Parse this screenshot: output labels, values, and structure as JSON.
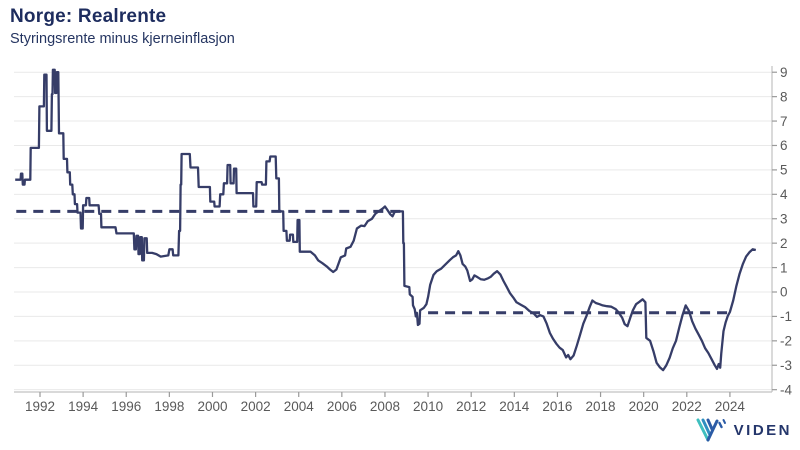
{
  "header": {
    "title": "Norge: Realrente",
    "subtitle": "Styringsrente minus kjerneinflasjon"
  },
  "branding": {
    "logo_text": "VIDEN"
  },
  "colors": {
    "line": "#363d68",
    "dashed_line": "#363d68",
    "title": "#1d2c5e",
    "subtitle": "#253561",
    "tick_label": "#595959",
    "gridline": "#e9e9e9",
    "axis_line": "#c2c2c2",
    "tick_mark": "#9a9a9a",
    "logo_teal": "#3fbfbf",
    "logo_mid_blue": "#2f8fc0",
    "logo_navy": "#2b5ba6"
  },
  "chart_data": {
    "type": "line",
    "title": "Norge: Realrente",
    "subtitle": "Styringsrente minus kjerneinflasjon",
    "grid": "horizontal-light",
    "y_axis_side": "right",
    "legend": "none",
    "xlim": [
      1990.8,
      2025.85
    ],
    "ylim": [
      -4.3,
      9.3
    ],
    "x_ticks": [
      1992,
      1994,
      1996,
      1998,
      2000,
      2002,
      2004,
      2006,
      2008,
      2010,
      2012,
      2014,
      2016,
      2018,
      2020,
      2022,
      2024
    ],
    "y_ticks": [
      9,
      8,
      7,
      6,
      5,
      4,
      3,
      2,
      1,
      0,
      -1,
      -2,
      -3,
      -4
    ],
    "reference_lines": [
      {
        "value": 3.3,
        "from": 1990.9,
        "to": 2008.83,
        "style": "dashed"
      },
      {
        "value": -0.85,
        "from": 2010.0,
        "to": 2023.9,
        "style": "dashed"
      }
    ],
    "series": [
      {
        "name": "Realrente",
        "points": [
          [
            1990.85,
            4.6
          ],
          [
            1991.1,
            4.6
          ],
          [
            1991.12,
            4.85
          ],
          [
            1991.18,
            4.85
          ],
          [
            1991.2,
            4.4
          ],
          [
            1991.28,
            4.4
          ],
          [
            1991.3,
            4.6
          ],
          [
            1991.55,
            4.6
          ],
          [
            1991.57,
            5.9
          ],
          [
            1991.95,
            5.9
          ],
          [
            1991.97,
            7.6
          ],
          [
            1992.18,
            7.6
          ],
          [
            1992.2,
            8.9
          ],
          [
            1992.3,
            8.9
          ],
          [
            1992.32,
            6.6
          ],
          [
            1992.53,
            6.6
          ],
          [
            1992.55,
            8.1
          ],
          [
            1992.58,
            8.1
          ],
          [
            1992.6,
            9.1
          ],
          [
            1992.68,
            9.1
          ],
          [
            1992.7,
            8.15
          ],
          [
            1992.76,
            8.15
          ],
          [
            1992.78,
            9.0
          ],
          [
            1992.85,
            9.0
          ],
          [
            1992.88,
            6.5
          ],
          [
            1993.08,
            6.5
          ],
          [
            1993.1,
            5.45
          ],
          [
            1993.25,
            5.45
          ],
          [
            1993.27,
            4.9
          ],
          [
            1993.38,
            4.9
          ],
          [
            1993.4,
            4.4
          ],
          [
            1993.5,
            4.4
          ],
          [
            1993.52,
            4.0
          ],
          [
            1993.6,
            4.0
          ],
          [
            1993.62,
            3.6
          ],
          [
            1993.72,
            3.6
          ],
          [
            1993.74,
            3.25
          ],
          [
            1993.88,
            3.25
          ],
          [
            1993.9,
            2.6
          ],
          [
            1993.98,
            2.6
          ],
          [
            1994.0,
            3.55
          ],
          [
            1994.13,
            3.55
          ],
          [
            1994.15,
            3.85
          ],
          [
            1994.28,
            3.85
          ],
          [
            1994.3,
            3.55
          ],
          [
            1994.72,
            3.55
          ],
          [
            1994.75,
            3.2
          ],
          [
            1994.83,
            3.2
          ],
          [
            1994.85,
            2.65
          ],
          [
            1995.5,
            2.65
          ],
          [
            1995.55,
            2.4
          ],
          [
            1996.35,
            2.4
          ],
          [
            1996.38,
            1.75
          ],
          [
            1996.45,
            1.75
          ],
          [
            1996.47,
            2.3
          ],
          [
            1996.55,
            2.3
          ],
          [
            1996.57,
            1.55
          ],
          [
            1996.63,
            1.55
          ],
          [
            1996.65,
            2.25
          ],
          [
            1996.72,
            2.25
          ],
          [
            1996.74,
            1.3
          ],
          [
            1996.82,
            1.3
          ],
          [
            1996.84,
            2.2
          ],
          [
            1996.95,
            2.2
          ],
          [
            1996.97,
            1.6
          ],
          [
            1997.2,
            1.6
          ],
          [
            1997.4,
            1.55
          ],
          [
            1997.6,
            1.45
          ],
          [
            1997.95,
            1.5
          ],
          [
            1998.0,
            1.75
          ],
          [
            1998.15,
            1.75
          ],
          [
            1998.18,
            1.5
          ],
          [
            1998.42,
            1.5
          ],
          [
            1998.45,
            2.5
          ],
          [
            1998.5,
            2.5
          ],
          [
            1998.52,
            4.4
          ],
          [
            1998.55,
            4.4
          ],
          [
            1998.57,
            5.65
          ],
          [
            1998.95,
            5.65
          ],
          [
            1998.98,
            5.1
          ],
          [
            1999.33,
            5.1
          ],
          [
            1999.36,
            4.3
          ],
          [
            1999.88,
            4.3
          ],
          [
            1999.9,
            3.7
          ],
          [
            2000.08,
            3.7
          ],
          [
            2000.1,
            3.5
          ],
          [
            2000.33,
            3.5
          ],
          [
            2000.36,
            4.0
          ],
          [
            2000.5,
            4.0
          ],
          [
            2000.53,
            4.45
          ],
          [
            2000.68,
            4.45
          ],
          [
            2000.7,
            5.2
          ],
          [
            2000.82,
            5.2
          ],
          [
            2000.84,
            4.45
          ],
          [
            2000.98,
            4.45
          ],
          [
            2001.0,
            5.05
          ],
          [
            2001.1,
            5.05
          ],
          [
            2001.12,
            4.05
          ],
          [
            2001.88,
            4.05
          ],
          [
            2001.9,
            3.5
          ],
          [
            2002.03,
            3.5
          ],
          [
            2002.05,
            4.5
          ],
          [
            2002.28,
            4.5
          ],
          [
            2002.3,
            4.4
          ],
          [
            2002.48,
            4.4
          ],
          [
            2002.5,
            5.35
          ],
          [
            2002.65,
            5.35
          ],
          [
            2002.68,
            5.55
          ],
          [
            2002.93,
            5.55
          ],
          [
            2002.96,
            4.65
          ],
          [
            2003.08,
            4.65
          ],
          [
            2003.1,
            3.3
          ],
          [
            2003.28,
            3.3
          ],
          [
            2003.3,
            2.5
          ],
          [
            2003.43,
            2.5
          ],
          [
            2003.45,
            2.1
          ],
          [
            2003.58,
            2.1
          ],
          [
            2003.6,
            2.35
          ],
          [
            2003.73,
            2.35
          ],
          [
            2003.75,
            2.05
          ],
          [
            2003.93,
            2.05
          ],
          [
            2003.95,
            2.95
          ],
          [
            2004.03,
            2.95
          ],
          [
            2004.05,
            1.65
          ],
          [
            2004.55,
            1.65
          ],
          [
            2004.75,
            1.5
          ],
          [
            2004.9,
            1.3
          ],
          [
            2005.1,
            1.18
          ],
          [
            2005.3,
            1.05
          ],
          [
            2005.45,
            0.92
          ],
          [
            2005.6,
            0.82
          ],
          [
            2005.75,
            0.92
          ],
          [
            2005.95,
            1.42
          ],
          [
            2006.15,
            1.5
          ],
          [
            2006.2,
            1.78
          ],
          [
            2006.4,
            1.85
          ],
          [
            2006.55,
            2.1
          ],
          [
            2006.7,
            2.6
          ],
          [
            2006.9,
            2.72
          ],
          [
            2007.05,
            2.7
          ],
          [
            2007.2,
            2.9
          ],
          [
            2007.4,
            3.0
          ],
          [
            2007.55,
            3.2
          ],
          [
            2007.7,
            3.3
          ],
          [
            2007.9,
            3.42
          ],
          [
            2008.0,
            3.5
          ],
          [
            2008.1,
            3.38
          ],
          [
            2008.25,
            3.18
          ],
          [
            2008.35,
            3.1
          ],
          [
            2008.45,
            3.28
          ],
          [
            2008.6,
            3.3
          ],
          [
            2008.83,
            3.3
          ],
          [
            2008.85,
            2.0
          ],
          [
            2008.88,
            2.0
          ],
          [
            2008.9,
            0.25
          ],
          [
            2009.13,
            0.2
          ],
          [
            2009.15,
            -0.1
          ],
          [
            2009.28,
            -0.2
          ],
          [
            2009.3,
            -0.55
          ],
          [
            2009.38,
            -0.7
          ],
          [
            2009.43,
            -1.0
          ],
          [
            2009.48,
            -0.85
          ],
          [
            2009.53,
            -1.35
          ],
          [
            2009.6,
            -1.3
          ],
          [
            2009.63,
            -0.75
          ],
          [
            2009.8,
            -0.65
          ],
          [
            2009.92,
            -0.5
          ],
          [
            2010.0,
            -0.2
          ],
          [
            2010.1,
            0.3
          ],
          [
            2010.25,
            0.7
          ],
          [
            2010.4,
            0.85
          ],
          [
            2010.6,
            0.95
          ],
          [
            2010.8,
            1.12
          ],
          [
            2011.0,
            1.3
          ],
          [
            2011.15,
            1.42
          ],
          [
            2011.3,
            1.5
          ],
          [
            2011.4,
            1.67
          ],
          [
            2011.5,
            1.5
          ],
          [
            2011.6,
            1.15
          ],
          [
            2011.72,
            1.05
          ],
          [
            2011.82,
            0.88
          ],
          [
            2011.95,
            0.45
          ],
          [
            2012.05,
            0.52
          ],
          [
            2012.15,
            0.68
          ],
          [
            2012.3,
            0.6
          ],
          [
            2012.45,
            0.52
          ],
          [
            2012.6,
            0.5
          ],
          [
            2012.75,
            0.55
          ],
          [
            2012.9,
            0.62
          ],
          [
            2013.05,
            0.75
          ],
          [
            2013.2,
            0.85
          ],
          [
            2013.35,
            0.72
          ],
          [
            2013.5,
            0.45
          ],
          [
            2013.65,
            0.2
          ],
          [
            2013.8,
            -0.05
          ],
          [
            2013.95,
            -0.22
          ],
          [
            2014.1,
            -0.42
          ],
          [
            2014.3,
            -0.52
          ],
          [
            2014.5,
            -0.62
          ],
          [
            2014.7,
            -0.78
          ],
          [
            2014.9,
            -0.88
          ],
          [
            2015.05,
            -1.02
          ],
          [
            2015.2,
            -0.95
          ],
          [
            2015.35,
            -1.0
          ],
          [
            2015.5,
            -1.3
          ],
          [
            2015.65,
            -1.68
          ],
          [
            2015.8,
            -1.92
          ],
          [
            2015.95,
            -2.12
          ],
          [
            2016.1,
            -2.28
          ],
          [
            2016.25,
            -2.38
          ],
          [
            2016.4,
            -2.68
          ],
          [
            2016.5,
            -2.58
          ],
          [
            2016.6,
            -2.75
          ],
          [
            2016.75,
            -2.6
          ],
          [
            2016.9,
            -2.2
          ],
          [
            2017.05,
            -1.75
          ],
          [
            2017.2,
            -1.3
          ],
          [
            2017.35,
            -0.98
          ],
          [
            2017.5,
            -0.6
          ],
          [
            2017.62,
            -0.35
          ],
          [
            2017.78,
            -0.45
          ],
          [
            2017.95,
            -0.5
          ],
          [
            2018.1,
            -0.55
          ],
          [
            2018.3,
            -0.58
          ],
          [
            2018.5,
            -0.6
          ],
          [
            2018.7,
            -0.7
          ],
          [
            2018.85,
            -0.85
          ],
          [
            2019.0,
            -1.05
          ],
          [
            2019.12,
            -1.32
          ],
          [
            2019.25,
            -1.4
          ],
          [
            2019.38,
            -1.05
          ],
          [
            2019.5,
            -0.75
          ],
          [
            2019.65,
            -0.5
          ],
          [
            2019.8,
            -0.4
          ],
          [
            2019.95,
            -0.3
          ],
          [
            2020.08,
            -0.42
          ],
          [
            2020.12,
            -1.88
          ],
          [
            2020.3,
            -2.0
          ],
          [
            2020.45,
            -2.42
          ],
          [
            2020.6,
            -2.9
          ],
          [
            2020.75,
            -3.08
          ],
          [
            2020.9,
            -3.2
          ],
          [
            2021.05,
            -3.0
          ],
          [
            2021.2,
            -2.7
          ],
          [
            2021.35,
            -2.3
          ],
          [
            2021.5,
            -2.0
          ],
          [
            2021.65,
            -1.45
          ],
          [
            2021.8,
            -0.95
          ],
          [
            2021.95,
            -0.55
          ],
          [
            2022.1,
            -0.78
          ],
          [
            2022.25,
            -1.2
          ],
          [
            2022.4,
            -1.5
          ],
          [
            2022.55,
            -1.75
          ],
          [
            2022.7,
            -2.0
          ],
          [
            2022.85,
            -2.3
          ],
          [
            2023.0,
            -2.5
          ],
          [
            2023.15,
            -2.75
          ],
          [
            2023.3,
            -3.0
          ],
          [
            2023.4,
            -3.15
          ],
          [
            2023.48,
            -2.95
          ],
          [
            2023.55,
            -3.1
          ],
          [
            2023.6,
            -2.5
          ],
          [
            2023.7,
            -1.6
          ],
          [
            2023.8,
            -1.25
          ],
          [
            2023.9,
            -0.98
          ],
          [
            2024.0,
            -0.82
          ],
          [
            2024.15,
            -0.35
          ],
          [
            2024.3,
            0.25
          ],
          [
            2024.45,
            0.75
          ],
          [
            2024.6,
            1.15
          ],
          [
            2024.75,
            1.45
          ],
          [
            2024.9,
            1.62
          ],
          [
            2025.05,
            1.75
          ],
          [
            2025.2,
            1.72
          ]
        ]
      }
    ]
  }
}
